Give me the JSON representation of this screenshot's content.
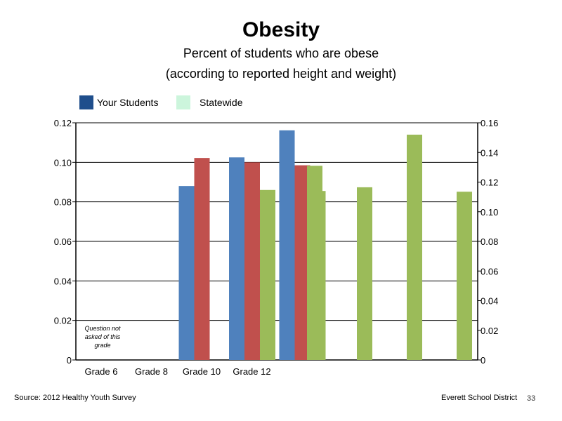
{
  "header": {
    "title": "Obesity",
    "subtitle_line1": "Percent of students who are obese",
    "subtitle_line2": "(according to reported height and weight)"
  },
  "legend": [
    {
      "label": "Your Students",
      "color": "#1f4e8c"
    },
    {
      "label": "Statewide",
      "color": "#ccf5dc"
    }
  ],
  "footer": {
    "source": "Source: 2012 Healthy Youth Survey",
    "district": "Everett School District",
    "page_number": "33"
  },
  "chart_data": {
    "type": "bar",
    "categories": [
      "Grade 6",
      "Grade 8",
      "Grade 10",
      "Grade 12"
    ],
    "left_axis": {
      "ylim": [
        0,
        0.12
      ],
      "ticks": [
        "0",
        "0.02",
        "0.04",
        "0.06",
        "0.08",
        "0.10",
        "0.12"
      ]
    },
    "right_axis": {
      "ylim": [
        0,
        0.16
      ],
      "ticks": [
        "0",
        "0.02",
        "0.04",
        "0.06",
        "0.08",
        "0.10",
        "0.12",
        "0.14",
        "0.16"
      ]
    },
    "grid": true,
    "series": [
      {
        "color": "#4f81bd",
        "axis": "left",
        "values": [
          null,
          0.088,
          0.1025,
          0.1162
        ]
      },
      {
        "color": "#c0504d",
        "axis": "left",
        "values": [
          null,
          0.1022,
          0.1,
          0.0985
        ]
      },
      {
        "color": "#9bbb59",
        "axis": "left",
        "values": [
          null,
          null,
          0.086,
          0.0855
        ]
      }
    ],
    "extra_bars": {
      "color": "#9bbb59",
      "axis": "right",
      "values": [
        0.131,
        0.1165,
        0.152,
        0.1135
      ]
    },
    "annotation": {
      "category": "Grade 6",
      "lines": [
        "Question not",
        "asked of this",
        "grade"
      ]
    }
  }
}
